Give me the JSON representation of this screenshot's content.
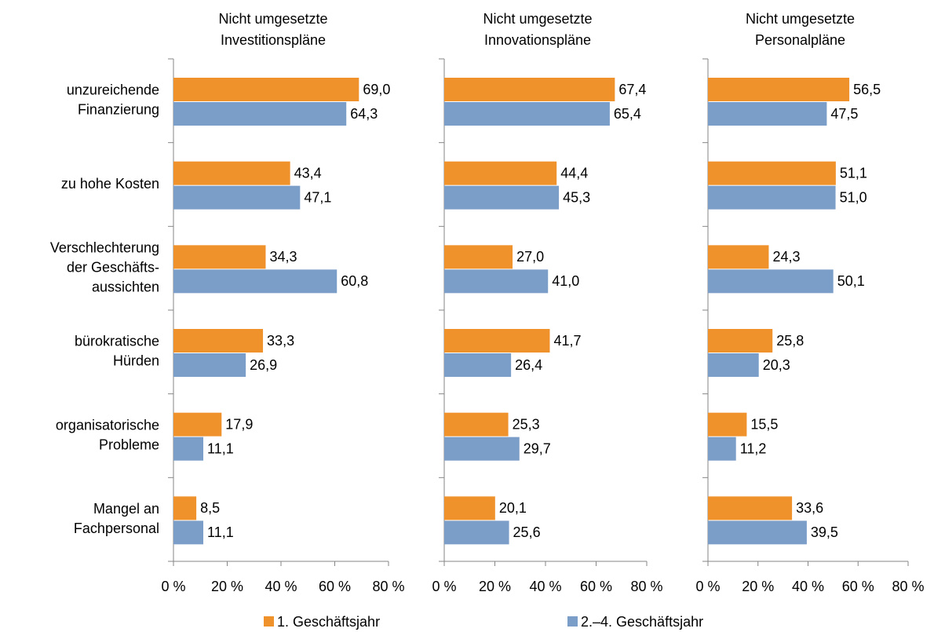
{
  "chart_data": [
    {
      "type": "bar",
      "orientation": "horizontal",
      "title": [
        "Nicht umgesetzte",
        "Investitionspläne"
      ],
      "categories": [
        [
          "unzureichende",
          "Finanzierung"
        ],
        [
          "zu hohe Kosten"
        ],
        [
          "Verschlechterung",
          "der Geschäfts-",
          "aussichten"
        ],
        [
          "bürokratische",
          "Hürden"
        ],
        [
          "organisatorische",
          "Probleme"
        ],
        [
          "Mangel an",
          "Fachpersonal"
        ]
      ],
      "series": [
        {
          "name": "1. Geschäftsjahr",
          "color": "#f0922b",
          "values": [
            69.0,
            43.4,
            34.3,
            33.3,
            17.9,
            8.5
          ],
          "value_labels": [
            "69,0",
            "43,4",
            "34,3",
            "33,3",
            "17,9",
            "8,5"
          ]
        },
        {
          "name": "2.–4. Geschäftsjahr",
          "color": "#7b9ec9",
          "values": [
            64.3,
            47.1,
            60.8,
            26.9,
            11.1,
            11.1
          ],
          "value_labels": [
            "64,3",
            "47,1",
            "60,8",
            "26,9",
            "11,1",
            "11,1"
          ]
        }
      ],
      "xlim": [
        0,
        80
      ],
      "xticks": [
        {
          "value": 0,
          "label": "0 %"
        },
        {
          "value": 20,
          "label": "20 %"
        },
        {
          "value": 40,
          "label": "40 %"
        },
        {
          "value": 60,
          "label": "60 %"
        },
        {
          "value": 80,
          "label": "80 %"
        }
      ]
    },
    {
      "type": "bar",
      "orientation": "horizontal",
      "title": [
        "Nicht umgesetzte",
        "Innovationspläne"
      ],
      "series": [
        {
          "color": "#f0922b",
          "values": [
            67.4,
            44.4,
            27.0,
            41.7,
            25.3,
            20.1
          ],
          "value_labels": [
            "67,4",
            "44,4",
            "27,0",
            "41,7",
            "25,3",
            "20,1"
          ]
        },
        {
          "color": "#7b9ec9",
          "values": [
            65.4,
            45.3,
            41.0,
            26.4,
            29.7,
            25.6
          ],
          "value_labels": [
            "65,4",
            "45,3",
            "41,0",
            "26,4",
            "29,7",
            "25,6"
          ]
        }
      ],
      "xlim": [
        0,
        80
      ],
      "xticks": [
        {
          "value": 0,
          "label": "0 %"
        },
        {
          "value": 20,
          "label": "20 %"
        },
        {
          "value": 40,
          "label": "40 %"
        },
        {
          "value": 60,
          "label": "60 %"
        },
        {
          "value": 80,
          "label": "80 %"
        }
      ]
    },
    {
      "type": "bar",
      "orientation": "horizontal",
      "title": [
        "Nicht umgesetzte",
        "Personalpläne"
      ],
      "series": [
        {
          "color": "#f0922b",
          "values": [
            56.5,
            51.1,
            24.3,
            25.8,
            15.5,
            33.6
          ],
          "value_labels": [
            "56,5",
            "51,1",
            "24,3",
            "25,8",
            "15,5",
            "33,6"
          ]
        },
        {
          "color": "#7b9ec9",
          "values": [
            47.5,
            51.0,
            50.1,
            20.3,
            11.2,
            39.5
          ],
          "value_labels": [
            "47,5",
            "51,0",
            "50,1",
            "20,3",
            "11,2",
            "39,5"
          ]
        }
      ],
      "xlim": [
        0,
        80
      ],
      "xticks": [
        {
          "value": 0,
          "label": "0 %"
        },
        {
          "value": 20,
          "label": "20 %"
        },
        {
          "value": 40,
          "label": "40 %"
        },
        {
          "value": 60,
          "label": "60 %"
        },
        {
          "value": 80,
          "label": "80 %"
        }
      ]
    }
  ]
}
